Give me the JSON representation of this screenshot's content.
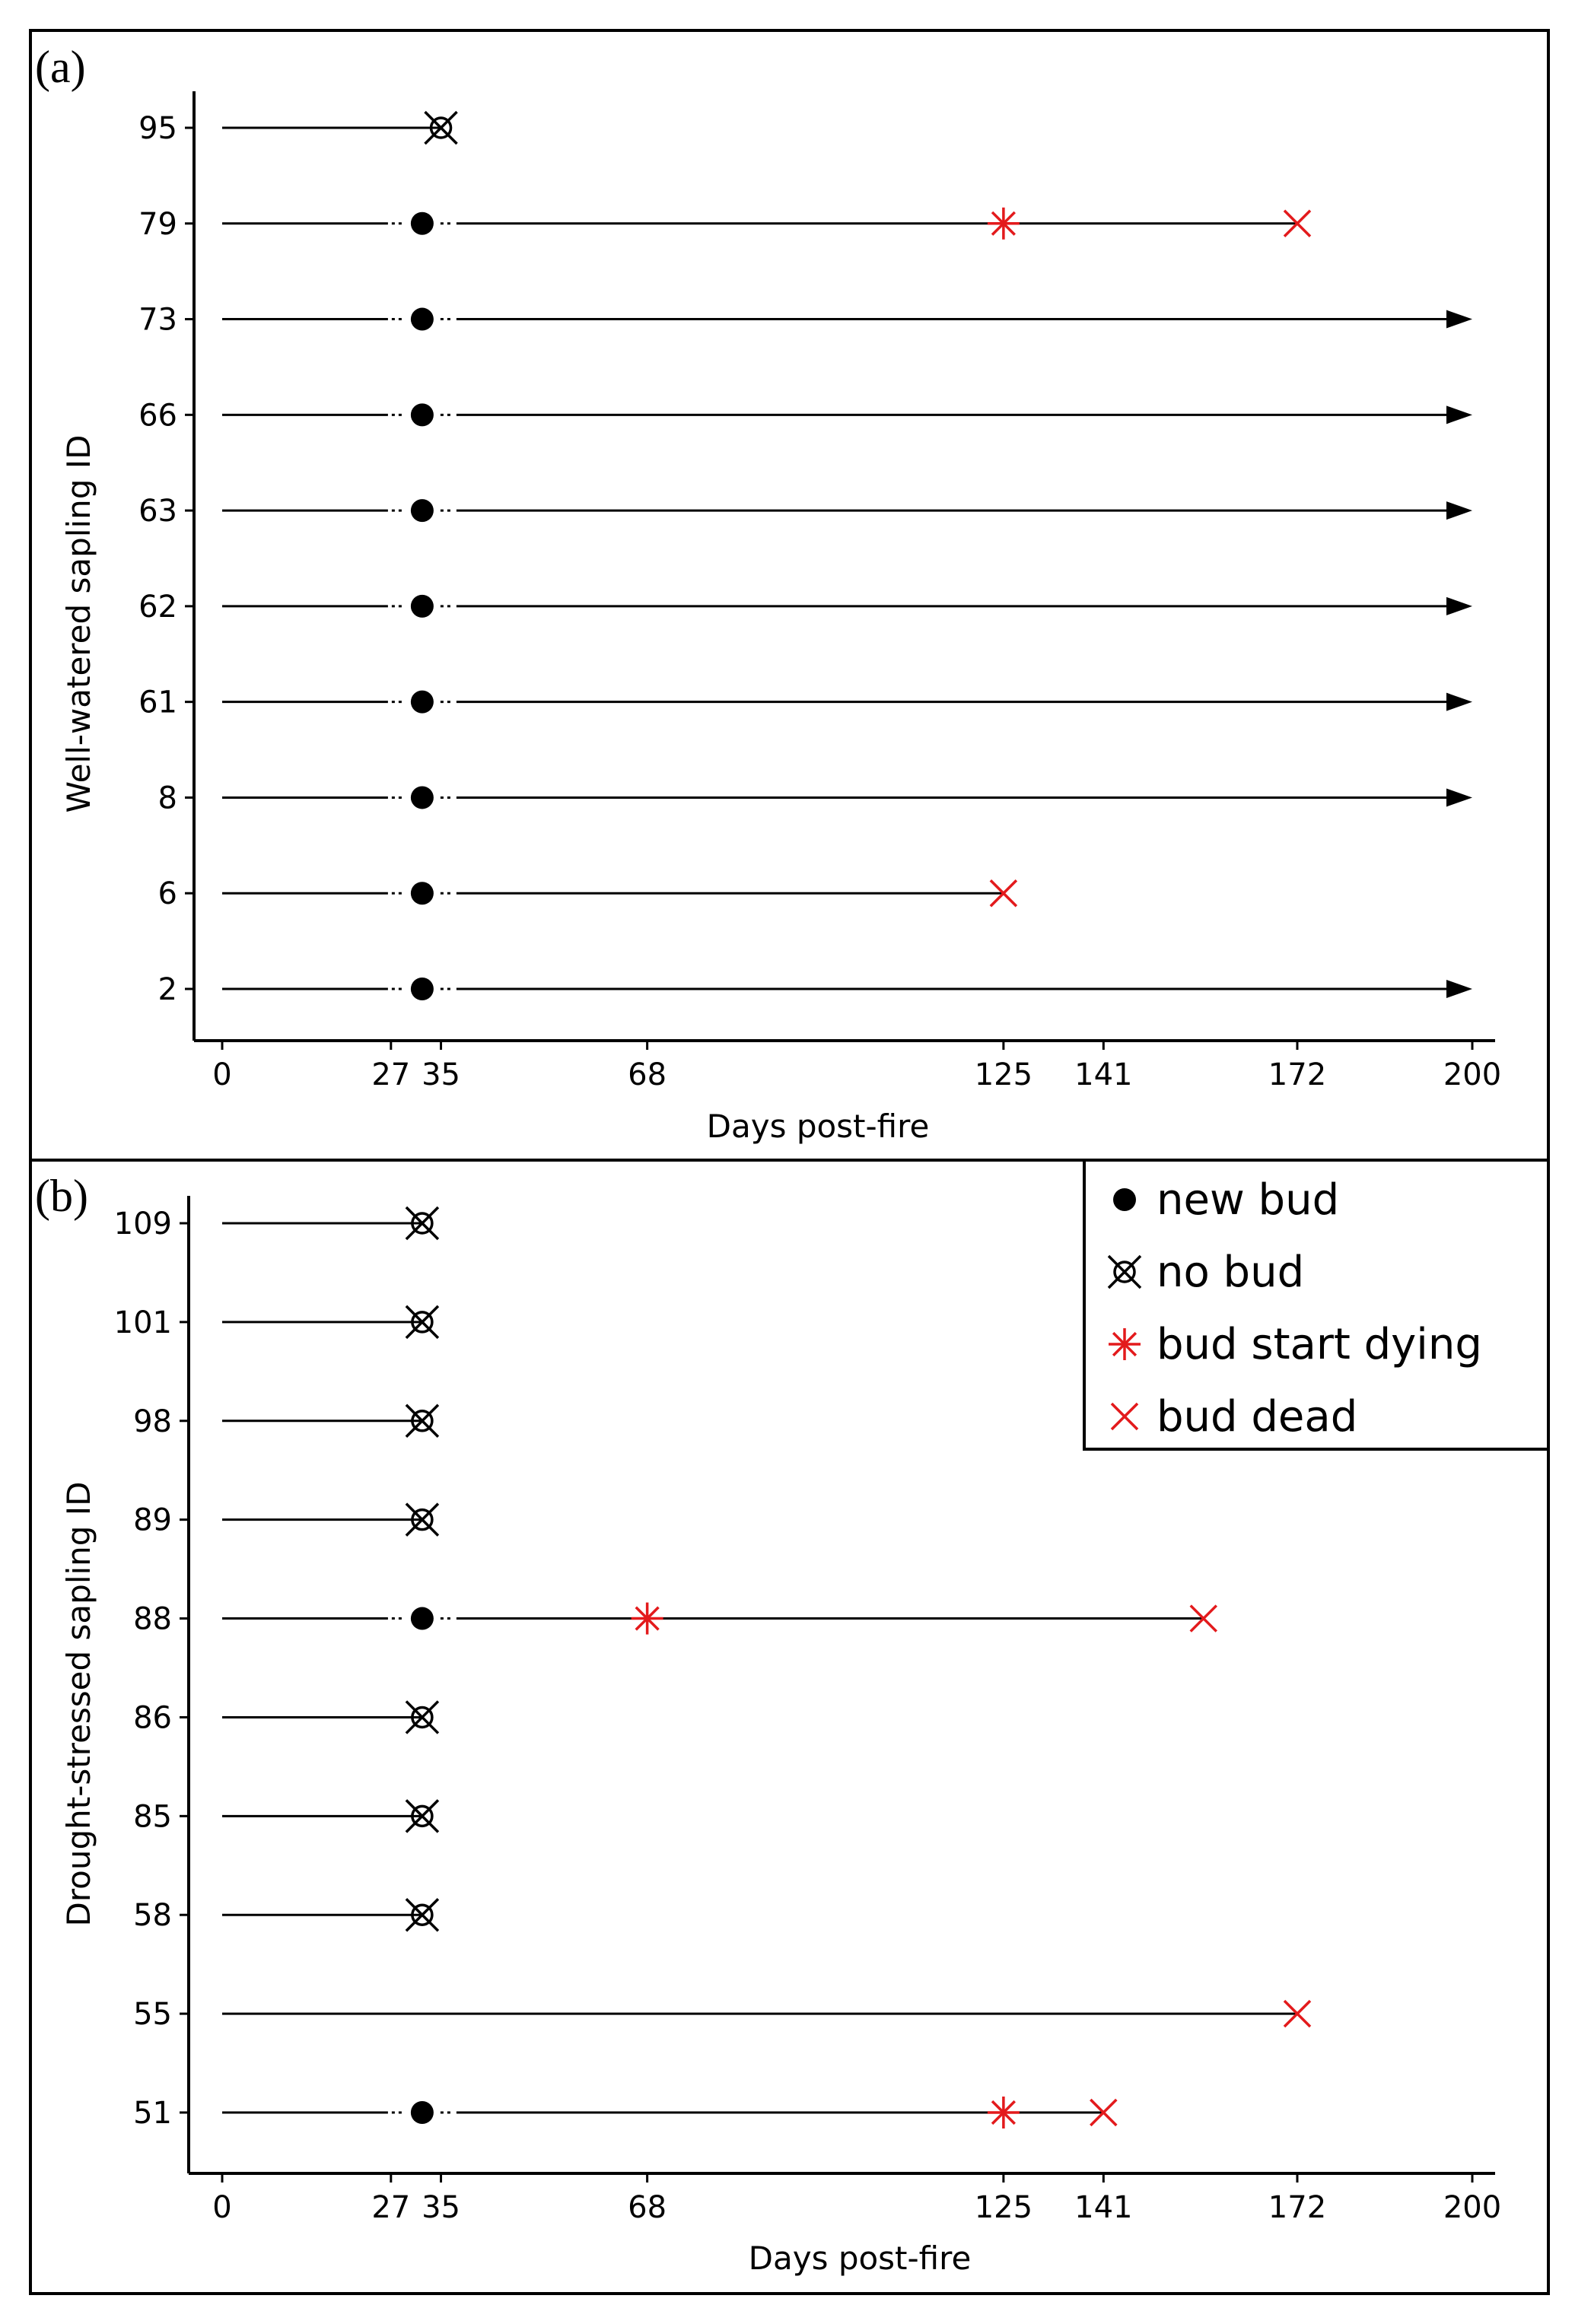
{
  "chart_data": [
    {
      "type": "timeline",
      "panel_label": "(a)",
      "xlabel": "Days post-fire",
      "ylabel": "Well-watered sapling ID",
      "xlim": [
        0,
        200
      ],
      "xticks": [
        0,
        27,
        35,
        68,
        125,
        141,
        172,
        200
      ],
      "saplings": [
        {
          "id": "95",
          "line_end": 35,
          "arrow": false,
          "events": [
            {
              "day": 35,
              "type": "no_bud"
            }
          ]
        },
        {
          "id": "79",
          "line_end": 172,
          "arrow": false,
          "events": [
            {
              "day": 32,
              "type": "new_bud"
            },
            {
              "day": 125,
              "type": "bud_start_dying"
            },
            {
              "day": 172,
              "type": "bud_dead"
            }
          ]
        },
        {
          "id": "73",
          "line_end": 200,
          "arrow": true,
          "events": [
            {
              "day": 32,
              "type": "new_bud"
            }
          ]
        },
        {
          "id": "66",
          "line_end": 200,
          "arrow": true,
          "events": [
            {
              "day": 32,
              "type": "new_bud"
            }
          ]
        },
        {
          "id": "63",
          "line_end": 200,
          "arrow": true,
          "events": [
            {
              "day": 32,
              "type": "new_bud"
            }
          ]
        },
        {
          "id": "62",
          "line_end": 200,
          "arrow": true,
          "events": [
            {
              "day": 32,
              "type": "new_bud"
            }
          ]
        },
        {
          "id": "61",
          "line_end": 200,
          "arrow": true,
          "events": [
            {
              "day": 32,
              "type": "new_bud"
            }
          ]
        },
        {
          "id": "8",
          "line_end": 200,
          "arrow": true,
          "events": [
            {
              "day": 32,
              "type": "new_bud"
            }
          ]
        },
        {
          "id": "6",
          "line_end": 125,
          "arrow": false,
          "events": [
            {
              "day": 32,
              "type": "new_bud"
            },
            {
              "day": 125,
              "type": "bud_dead"
            }
          ]
        },
        {
          "id": "2",
          "line_end": 200,
          "arrow": true,
          "events": [
            {
              "day": 32,
              "type": "new_bud"
            }
          ]
        }
      ]
    },
    {
      "type": "timeline",
      "panel_label": "(b)",
      "xlabel": "Days post-fire",
      "ylabel": "Drought-stressed sapling ID",
      "xlim": [
        0,
        200
      ],
      "xticks": [
        0,
        27,
        35,
        68,
        125,
        141,
        172,
        200
      ],
      "saplings": [
        {
          "id": "109",
          "line_end": 32,
          "arrow": false,
          "events": [
            {
              "day": 32,
              "type": "no_bud"
            }
          ]
        },
        {
          "id": "101",
          "line_end": 32,
          "arrow": false,
          "events": [
            {
              "day": 32,
              "type": "no_bud"
            }
          ]
        },
        {
          "id": "98",
          "line_end": 32,
          "arrow": false,
          "events": [
            {
              "day": 32,
              "type": "no_bud"
            }
          ]
        },
        {
          "id": "89",
          "line_end": 32,
          "arrow": false,
          "events": [
            {
              "day": 32,
              "type": "no_bud"
            }
          ]
        },
        {
          "id": "88",
          "line_end": 157,
          "arrow": false,
          "events": [
            {
              "day": 32,
              "type": "new_bud"
            },
            {
              "day": 68,
              "type": "bud_start_dying"
            },
            {
              "day": 157,
              "type": "bud_dead"
            }
          ]
        },
        {
          "id": "86",
          "line_end": 32,
          "arrow": false,
          "events": [
            {
              "day": 32,
              "type": "no_bud"
            }
          ]
        },
        {
          "id": "85",
          "line_end": 32,
          "arrow": false,
          "events": [
            {
              "day": 32,
              "type": "no_bud"
            }
          ]
        },
        {
          "id": "58",
          "line_end": 32,
          "arrow": false,
          "events": [
            {
              "day": 32,
              "type": "no_bud"
            }
          ]
        },
        {
          "id": "55",
          "line_end": 172,
          "arrow": false,
          "events": [
            {
              "day": 172,
              "type": "bud_dead"
            }
          ]
        },
        {
          "id": "51",
          "line_end": 141,
          "arrow": false,
          "events": [
            {
              "day": 32,
              "type": "new_bud"
            },
            {
              "day": 125,
              "type": "bud_start_dying"
            },
            {
              "day": 141,
              "type": "bud_dead"
            }
          ]
        }
      ],
      "legend": {
        "placement": "top-right",
        "entries": [
          {
            "type": "new_bud",
            "label": "new bud"
          },
          {
            "type": "no_bud",
            "label": "no bud"
          },
          {
            "type": "bud_start_dying",
            "label": "bud start dying"
          },
          {
            "type": "bud_dead",
            "label": "bud dead"
          }
        ]
      }
    }
  ],
  "colors": {
    "line": "#000000",
    "dying": "#e31a1c",
    "dead": "#e31a1c"
  }
}
